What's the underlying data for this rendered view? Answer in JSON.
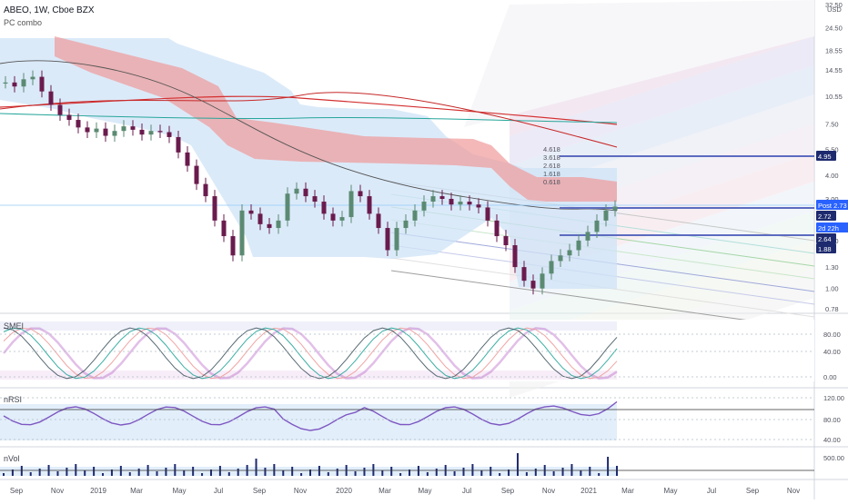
{
  "header": {
    "symbol": "ABEO, 1W, Cboe BZX",
    "indicator": "PC combo"
  },
  "panes": {
    "smei": "SMEI",
    "nrsi": "nRSI",
    "nvol": "nVol"
  },
  "price_axis": {
    "currency": "USD",
    "ticks": [
      "32.50",
      "24.50",
      "18.55",
      "14.55",
      "10.55",
      "7.50",
      "5.50",
      "4.00",
      "3.00",
      "1.80",
      "1.30",
      "1.00",
      "0.78"
    ]
  },
  "price_tags": [
    {
      "label": "4.95",
      "color": "#1e2a6e"
    },
    {
      "label": "Post  2.73",
      "color": "#2962ff"
    },
    {
      "label": "2.72",
      "color": "#1e2a6e"
    },
    {
      "label": "2d 22h",
      "color": "#2962ff"
    },
    {
      "label": "2.64",
      "color": "#1e2a6e"
    },
    {
      "label": "1.88",
      "color": "#1e2a6e"
    }
  ],
  "smei_ticks": [
    "80.00",
    "40.00",
    "0.00"
  ],
  "nrsi_ticks": [
    "120.00",
    "80.00",
    "40.00"
  ],
  "nvol_ticks": [
    "500.00"
  ],
  "x_ticks": [
    "Sep",
    "Nov",
    "2019",
    "Mar",
    "May",
    "Jul",
    "Sep",
    "Nov",
    "2020",
    "Mar",
    "May",
    "Jul",
    "Sep",
    "Nov",
    "2021",
    "Mar",
    "May",
    "Jul",
    "Sep",
    "Nov"
  ],
  "fib_labels": [
    "4.618",
    "3.618",
    "2.618",
    "1.618",
    "0.618"
  ],
  "colors": {
    "up": "#5b8a72",
    "down": "#6a1b4d",
    "cloud": "#cfe3f7",
    "red_band": "#ef9a9a",
    "accent": "#2962ff"
  },
  "chart_data": {
    "type": "candlestick",
    "title": "ABEO, 1W, Cboe BZX",
    "x_range": [
      "2018-08",
      "2021-12"
    ],
    "y_scale": "log",
    "ylim": [
      0.78,
      32.5
    ],
    "series": [
      {
        "values": [
          12.5,
          11.9,
          13,
          13.4,
          11.2,
          9.5,
          8.4,
          7.9,
          7.2,
          6.8,
          7.1,
          6.5,
          6.9,
          7.3,
          7.0,
          6.6,
          6.9,
          6.8,
          6.4,
          5.3,
          4.5,
          3.6,
          3.1,
          2.3,
          1.9,
          1.5,
          2.6,
          2.5,
          2.2,
          2.1,
          2.3,
          3.2,
          3.4,
          3.1,
          2.9,
          2.5,
          2.3,
          2.4,
          3.3,
          3.1,
          2.5,
          2.1,
          1.6,
          2.1,
          2.3,
          2.6,
          2.9,
          3.1,
          3.0,
          2.8,
          2.9,
          2.8,
          2.7,
          2.3,
          1.9,
          1.7,
          1.3,
          1.1,
          1.0,
          1.2,
          1.4,
          1.5,
          1.6,
          1.8,
          2.0,
          2.3,
          2.6,
          2.73
        ]
      }
    ]
  }
}
